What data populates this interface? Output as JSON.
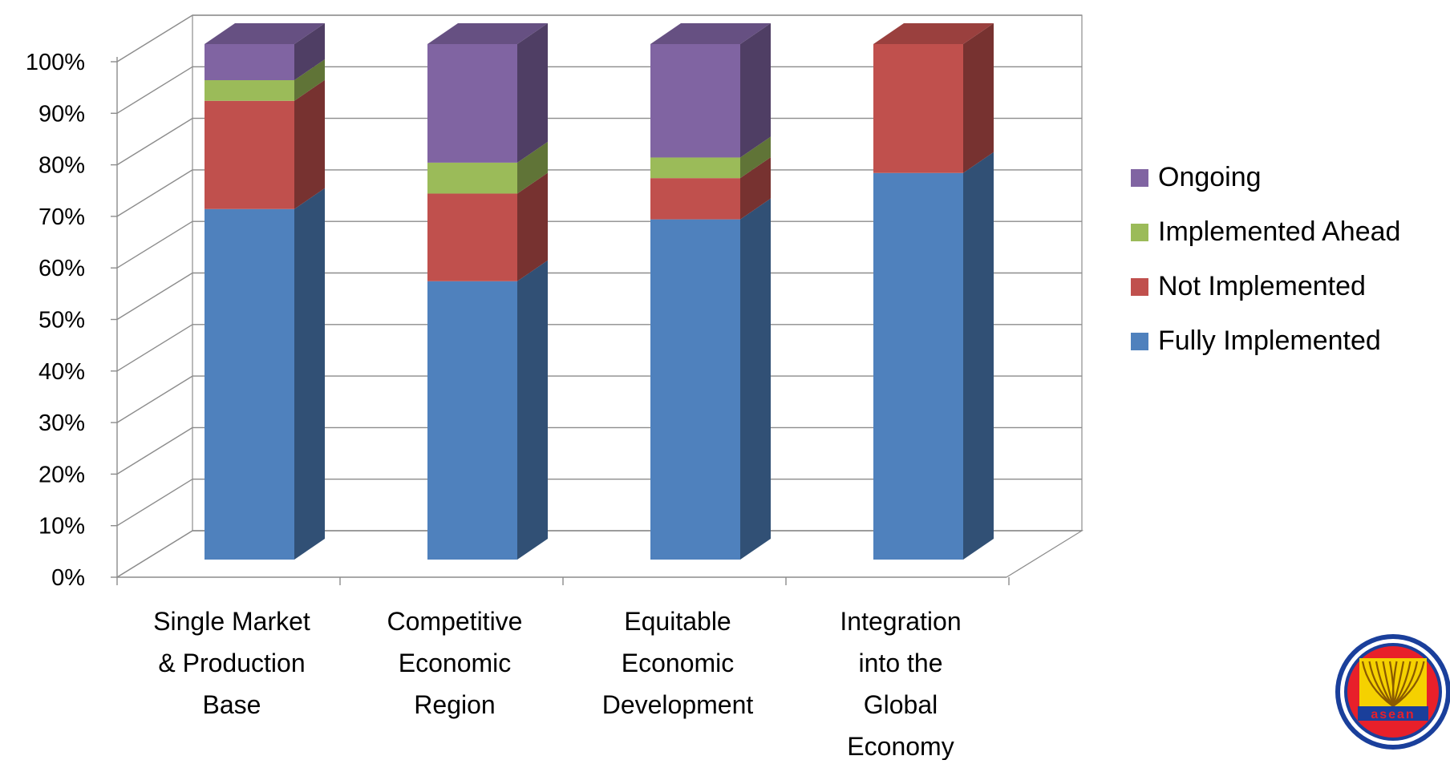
{
  "chart_data": {
    "type": "bar",
    "stacked": true,
    "three_d": true,
    "title": "",
    "xlabel": "",
    "ylabel": "",
    "ylim": [
      0,
      100
    ],
    "y_tick_labels": [
      "0%",
      "10%",
      "20%",
      "30%",
      "40%",
      "50%",
      "60%",
      "70%",
      "80%",
      "90%",
      "100%"
    ],
    "grid": true,
    "legend_position": "right",
    "categories": [
      [
        "Single Market",
        "& Production",
        "Base"
      ],
      [
        "Competitive",
        "Economic",
        "Region"
      ],
      [
        "Equitable",
        "Economic",
        "Development"
      ],
      [
        "Integration",
        "into the",
        "Global",
        "Economy"
      ]
    ],
    "series": [
      {
        "name": "Fully Implemented",
        "color": "#4f81bd",
        "values": [
          68,
          54,
          66,
          75
        ]
      },
      {
        "name": "Not Implemented",
        "color": "#c0504d",
        "values": [
          21,
          17,
          8,
          25
        ]
      },
      {
        "name": "Implemented Ahead",
        "color": "#9bbb59",
        "values": [
          4,
          6,
          4,
          0
        ]
      },
      {
        "name": "Ongoing",
        "color": "#8064a2",
        "values": [
          7,
          23,
          22,
          0
        ]
      }
    ],
    "legend_order": [
      "Ongoing",
      "Implemented Ahead",
      "Not Implemented",
      "Fully Implemented"
    ]
  },
  "logo": {
    "name": "asean-logo",
    "text": "asean",
    "colors": {
      "ring_outer": "#1a3f9b",
      "ring_white": "#ffffff",
      "fill": "#e8202a",
      "center": "#f5d100",
      "stalks": "#f5c400"
    }
  }
}
